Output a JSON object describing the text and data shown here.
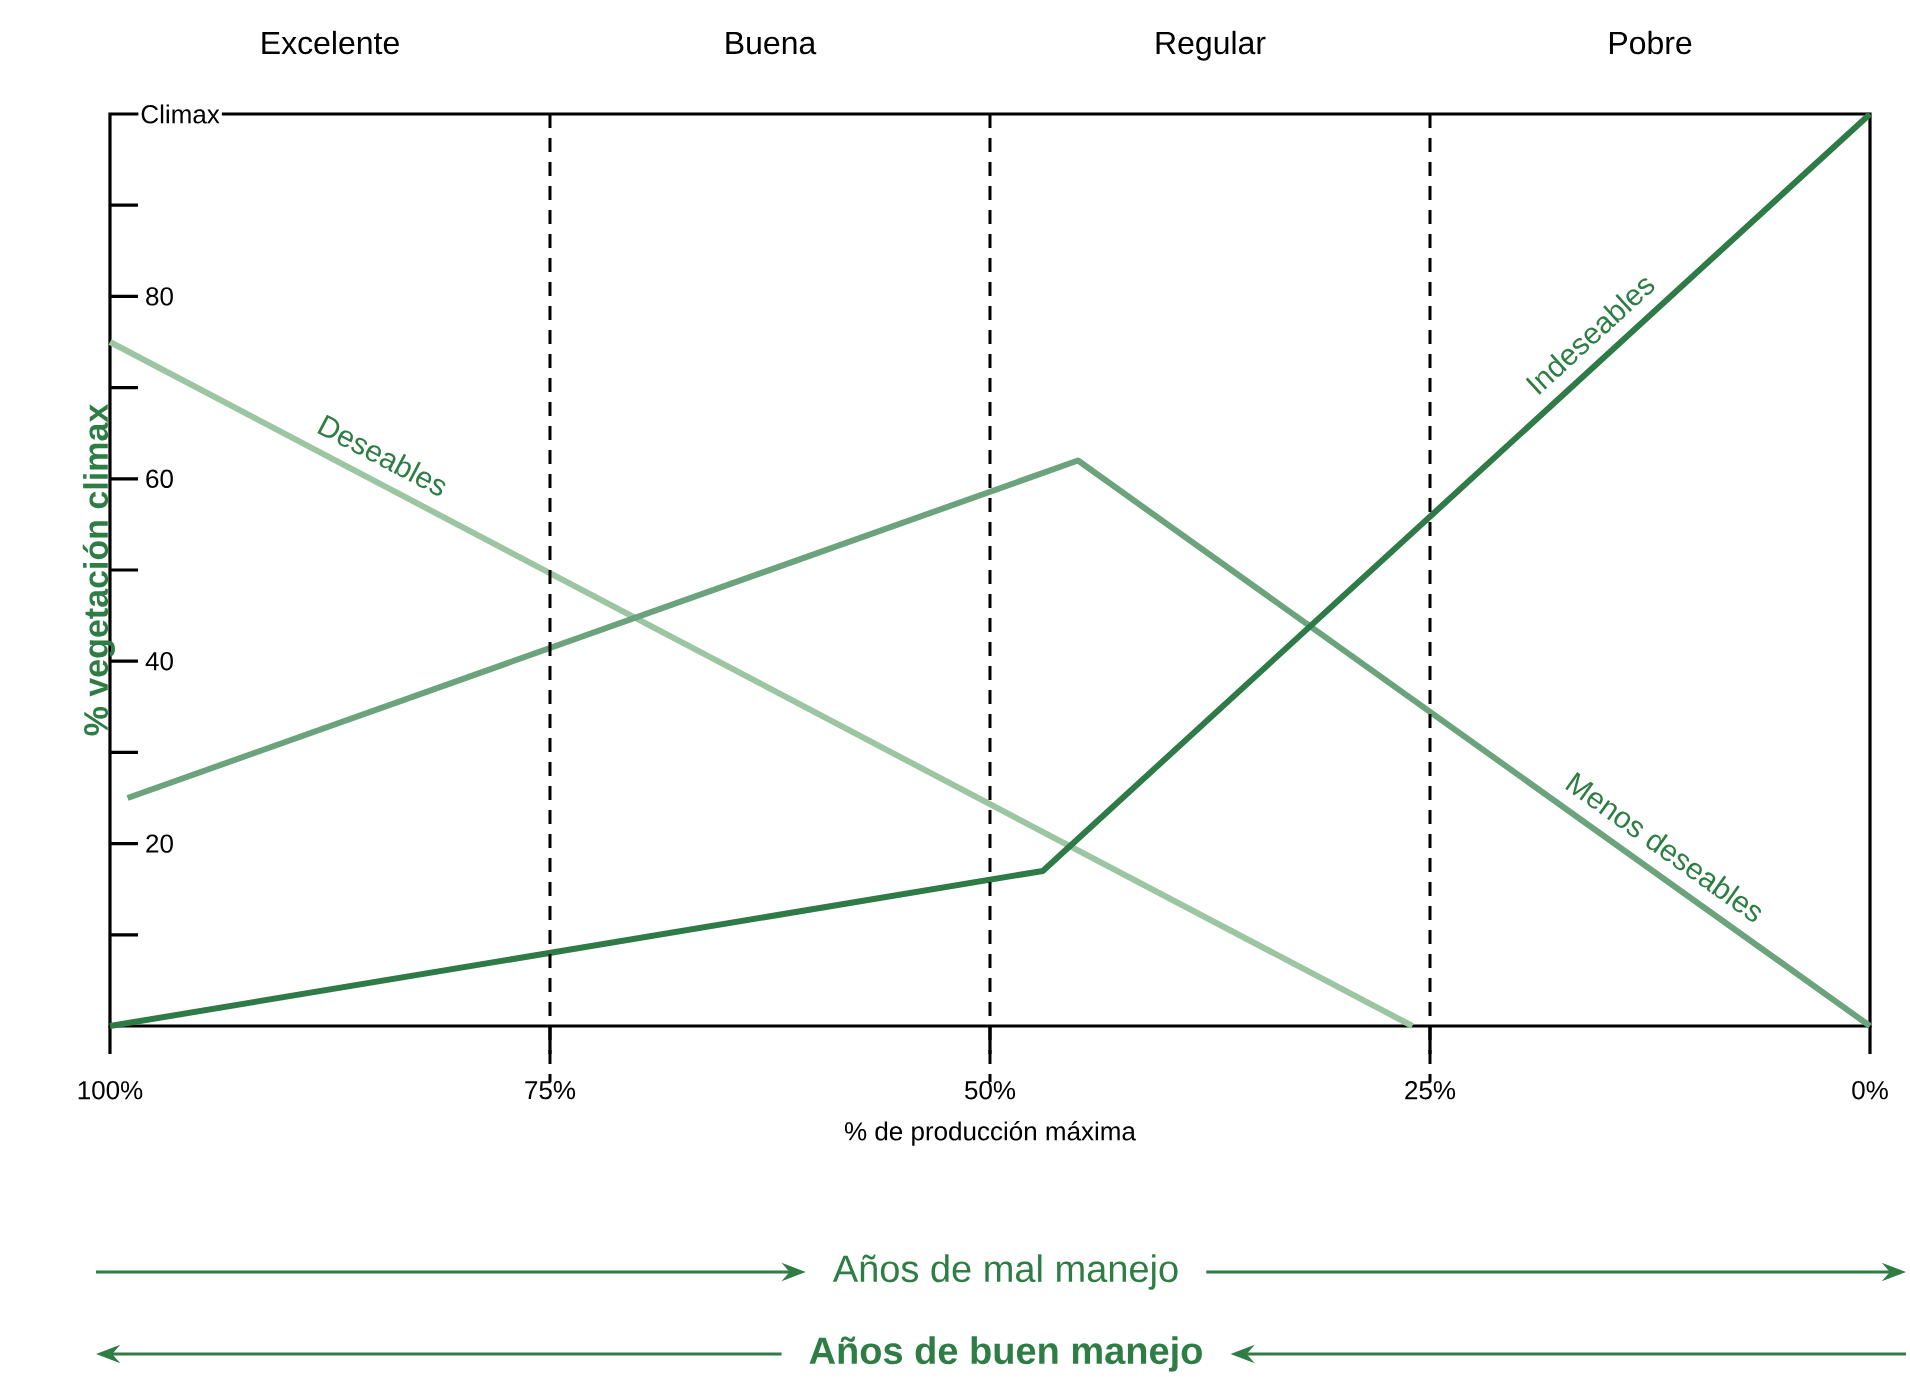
{
  "chart_data": {
    "type": "line",
    "xlabel": "% de producción máxima",
    "ylabel": "% vegetación climax",
    "xlim": [
      100,
      0
    ],
    "ylim": [
      0,
      100
    ],
    "xticks": [
      {
        "value": 100,
        "label": "100%"
      },
      {
        "value": 75,
        "label": "75%"
      },
      {
        "value": 50,
        "label": "50%"
      },
      {
        "value": 25,
        "label": "25%"
      },
      {
        "value": 0,
        "label": "0%"
      }
    ],
    "yticks": [
      {
        "value": 10,
        "label": null
      },
      20,
      {
        "value": 30,
        "label": null
      },
      40,
      {
        "value": 50,
        "label": null
      },
      60,
      {
        "value": 70,
        "label": null
      },
      80,
      {
        "value": 90,
        "label": null
      },
      {
        "value": 100,
        "label": "Climax"
      }
    ],
    "series": [
      {
        "name": "Deseables",
        "color": "#9cc5a1",
        "x": [
          100,
          26
        ],
        "values": [
          75,
          0
        ]
      },
      {
        "name": "Menos deseables",
        "color": "#6ba37c",
        "x": [
          99,
          45,
          0
        ],
        "values": [
          25,
          62,
          0
        ]
      },
      {
        "name": "Indeseables",
        "color": "#2e7b47",
        "x": [
          100,
          47,
          0
        ],
        "values": [
          0,
          17,
          100
        ]
      }
    ],
    "ref_lines": [
      {
        "axis": "x",
        "value": 75,
        "line_style": "dashed"
      },
      {
        "axis": "x",
        "value": 50,
        "line_style": "dashed"
      },
      {
        "axis": "x",
        "value": 25,
        "line_style": "dashed"
      }
    ],
    "annotations": [
      "Excelente",
      "Buena",
      "Regular",
      "Pobre",
      "Años de mal manejo",
      "Años de buen manejo"
    ],
    "line_style": "solid"
  }
}
